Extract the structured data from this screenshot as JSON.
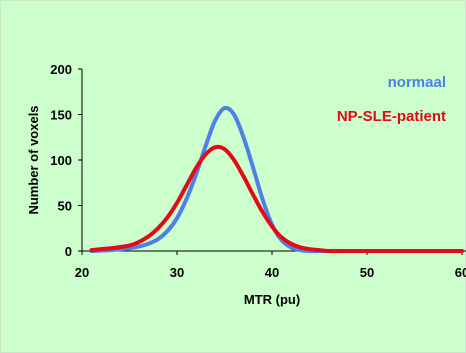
{
  "colors": {
    "background": "#ccffcc",
    "normaal": "#4f7fe8",
    "patient": "#e10b19"
  },
  "chart_data": {
    "type": "line",
    "xlabel": "MTR (pu)",
    "ylabel": "Number of voxels",
    "xlim": [
      20,
      60
    ],
    "ylim": [
      0,
      200
    ],
    "xticks": [
      "20",
      "30",
      "40",
      "50",
      "60"
    ],
    "yticks": [
      "0",
      "50",
      "100",
      "150",
      "200"
    ],
    "grid": false,
    "legend_position": "top-right",
    "series": [
      {
        "name": "normaal",
        "x": [
          21,
          23,
          25,
          26,
          27,
          28,
          29,
          30,
          31,
          32,
          33,
          34,
          35,
          36,
          37,
          38,
          39,
          40,
          41,
          42,
          43,
          44,
          46,
          50,
          60
        ],
        "y": [
          0,
          1,
          3,
          5,
          8,
          13,
          22,
          36,
          57,
          84,
          115,
          143,
          157,
          150,
          125,
          92,
          57,
          29,
          12,
          4,
          1,
          0,
          0,
          0,
          0
        ]
      },
      {
        "name": "NP-SLE-patient",
        "x": [
          21,
          23,
          25,
          26,
          27,
          28,
          29,
          30,
          31,
          32,
          33,
          34,
          35,
          36,
          37,
          38,
          39,
          40,
          41,
          42,
          43,
          44,
          45,
          46,
          48,
          50,
          60
        ],
        "y": [
          1,
          3,
          6,
          10,
          16,
          25,
          37,
          53,
          72,
          91,
          106,
          114,
          112,
          100,
          82,
          62,
          43,
          27,
          15,
          8,
          4,
          2,
          1,
          0,
          0,
          0,
          0
        ]
      }
    ]
  }
}
